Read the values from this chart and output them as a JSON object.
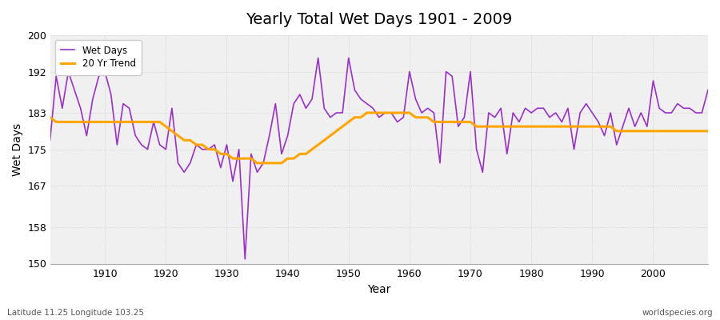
{
  "title": "Yearly Total Wet Days 1901 - 2009",
  "xlabel": "Year",
  "ylabel": "Wet Days",
  "bottom_left_label": "Latitude 11.25 Longitude 103.25",
  "bottom_right_label": "worldspecies.org",
  "wet_days_color": "#9B2FC9",
  "trend_color": "#FFA500",
  "background_color": "#ffffff",
  "plot_bg_color": "#f0f0f0",
  "ylim": [
    150,
    200
  ],
  "xlim": [
    1901,
    2009
  ],
  "yticks": [
    150,
    158,
    167,
    175,
    183,
    192,
    200
  ],
  "xticks": [
    1910,
    1920,
    1930,
    1940,
    1950,
    1960,
    1970,
    1980,
    1990,
    2000
  ],
  "years": [
    1901,
    1902,
    1903,
    1904,
    1905,
    1906,
    1907,
    1908,
    1909,
    1910,
    1911,
    1912,
    1913,
    1914,
    1915,
    1916,
    1917,
    1918,
    1919,
    1920,
    1921,
    1922,
    1923,
    1924,
    1925,
    1926,
    1927,
    1928,
    1929,
    1930,
    1931,
    1932,
    1933,
    1934,
    1935,
    1936,
    1937,
    1938,
    1939,
    1940,
    1941,
    1942,
    1943,
    1944,
    1945,
    1946,
    1947,
    1948,
    1949,
    1950,
    1951,
    1952,
    1953,
    1954,
    1955,
    1956,
    1957,
    1958,
    1959,
    1960,
    1961,
    1962,
    1963,
    1964,
    1965,
    1966,
    1967,
    1968,
    1969,
    1970,
    1971,
    1972,
    1973,
    1974,
    1975,
    1976,
    1977,
    1978,
    1979,
    1980,
    1981,
    1982,
    1983,
    1984,
    1985,
    1986,
    1987,
    1988,
    1989,
    1990,
    1991,
    1992,
    1993,
    1994,
    1995,
    1996,
    1997,
    1998,
    1999,
    2000,
    2001,
    2002,
    2003,
    2004,
    2005,
    2006,
    2007,
    2008,
    2009
  ],
  "wet_days": [
    177,
    191,
    184,
    192,
    188,
    184,
    178,
    186,
    191,
    192,
    187,
    176,
    185,
    184,
    178,
    176,
    175,
    181,
    176,
    175,
    184,
    172,
    170,
    172,
    176,
    175,
    175,
    176,
    171,
    176,
    168,
    175,
    151,
    174,
    170,
    172,
    178,
    185,
    174,
    178,
    185,
    187,
    184,
    186,
    195,
    184,
    182,
    183,
    183,
    195,
    188,
    186,
    185,
    184,
    182,
    183,
    183,
    181,
    182,
    192,
    186,
    183,
    184,
    183,
    172,
    192,
    191,
    180,
    182,
    192,
    175,
    170,
    183,
    182,
    184,
    174,
    183,
    181,
    184,
    183,
    184,
    184,
    182,
    183,
    181,
    184,
    175,
    183,
    185,
    183,
    181,
    178,
    183,
    176,
    180,
    184,
    180,
    183,
    180,
    190,
    184,
    183,
    183,
    185,
    184,
    184,
    183,
    183,
    188
  ],
  "trend": [
    182,
    181,
    181,
    181,
    181,
    181,
    181,
    181,
    181,
    181,
    181,
    181,
    181,
    181,
    181,
    181,
    181,
    181,
    181,
    180,
    179,
    178,
    177,
    177,
    176,
    176,
    175,
    175,
    174,
    174,
    173,
    173,
    173,
    173,
    172,
    172,
    172,
    172,
    172,
    173,
    173,
    174,
    174,
    175,
    176,
    177,
    178,
    179,
    180,
    181,
    182,
    182,
    183,
    183,
    183,
    183,
    183,
    183,
    183,
    183,
    182,
    182,
    182,
    181,
    181,
    181,
    181,
    181,
    181,
    181,
    180,
    180,
    180,
    180,
    180,
    180,
    180,
    180,
    180,
    180,
    180,
    180,
    180,
    180,
    180,
    180,
    180,
    180,
    180,
    180,
    180,
    180,
    180,
    179,
    179,
    179,
    179,
    179,
    179,
    179,
    179,
    179,
    179,
    179,
    179,
    179,
    179,
    179,
    179
  ]
}
